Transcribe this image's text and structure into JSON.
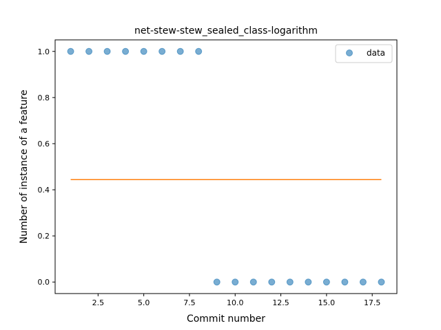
{
  "chart_data": {
    "type": "scatter",
    "title": "net-stew-stew_sealed_class-logarithm",
    "xlabel": "Commit number",
    "ylabel": "Number of instance of a feature",
    "xlim": [
      0.15,
      18.85
    ],
    "ylim": [
      -0.05,
      1.05
    ],
    "xticks": [
      2.5,
      5.0,
      7.5,
      10.0,
      12.5,
      15.0,
      17.5
    ],
    "xtick_labels": [
      "2.5",
      "5.0",
      "7.5",
      "10.0",
      "12.5",
      "15.0",
      "17.5"
    ],
    "yticks": [
      0.0,
      0.2,
      0.4,
      0.6,
      0.8,
      1.0
    ],
    "ytick_labels": [
      "0.0",
      "0.2",
      "0.4",
      "0.6",
      "0.8",
      "1.0"
    ],
    "grid": false,
    "legend": {
      "position": "top-right",
      "entries": [
        "data"
      ]
    },
    "series": [
      {
        "name": "data",
        "kind": "scatter",
        "color": "#1f77b4",
        "x": [
          1,
          2,
          3,
          4,
          5,
          6,
          7,
          8,
          9,
          10,
          11,
          12,
          13,
          14,
          15,
          16,
          17,
          18
        ],
        "y": [
          1,
          1,
          1,
          1,
          1,
          1,
          1,
          1,
          0,
          0,
          0,
          0,
          0,
          0,
          0,
          0,
          0,
          0
        ]
      },
      {
        "kind": "line",
        "color": "#ff7f0e",
        "x": [
          1,
          18
        ],
        "y": [
          0.444,
          0.444
        ]
      }
    ]
  }
}
